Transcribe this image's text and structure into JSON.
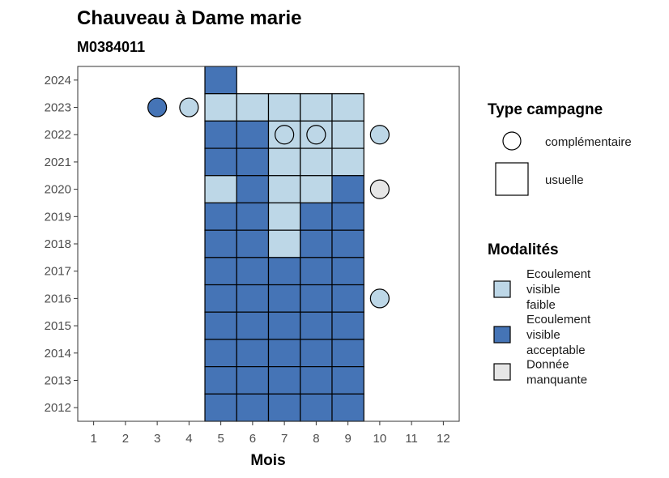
{
  "chart_data": {
    "type": "heatmap",
    "title": "Chauveau à Dame marie",
    "subtitle": "M0384011",
    "xlabel": "Mois",
    "ylabel": "",
    "x_ticks": [
      1,
      2,
      3,
      4,
      5,
      6,
      7,
      8,
      9,
      10,
      11,
      12
    ],
    "y_ticks": [
      2012,
      2013,
      2014,
      2015,
      2016,
      2017,
      2018,
      2019,
      2020,
      2021,
      2022,
      2023,
      2024
    ],
    "xlim": [
      0.5,
      12.5
    ],
    "ylim": [
      2011.5,
      2024.5
    ],
    "grid": false,
    "colors": {
      "faible": "#bdd7e7",
      "acceptable": "#4574b6",
      "manquante": "#e6e6e6"
    },
    "usuelle": [
      {
        "x": 5,
        "y": 2024,
        "m": "acceptable"
      },
      {
        "x": 5,
        "y": 2023,
        "m": "faible"
      },
      {
        "x": 6,
        "y": 2023,
        "m": "faible"
      },
      {
        "x": 7,
        "y": 2023,
        "m": "faible"
      },
      {
        "x": 8,
        "y": 2023,
        "m": "faible"
      },
      {
        "x": 9,
        "y": 2023,
        "m": "faible"
      },
      {
        "x": 5,
        "y": 2022,
        "m": "acceptable"
      },
      {
        "x": 6,
        "y": 2022,
        "m": "acceptable"
      },
      {
        "x": 7,
        "y": 2022,
        "m": "faible"
      },
      {
        "x": 8,
        "y": 2022,
        "m": "faible"
      },
      {
        "x": 9,
        "y": 2022,
        "m": "faible"
      },
      {
        "x": 5,
        "y": 2021,
        "m": "acceptable"
      },
      {
        "x": 6,
        "y": 2021,
        "m": "acceptable"
      },
      {
        "x": 7,
        "y": 2021,
        "m": "faible"
      },
      {
        "x": 8,
        "y": 2021,
        "m": "faible"
      },
      {
        "x": 9,
        "y": 2021,
        "m": "faible"
      },
      {
        "x": 5,
        "y": 2020,
        "m": "faible"
      },
      {
        "x": 6,
        "y": 2020,
        "m": "acceptable"
      },
      {
        "x": 7,
        "y": 2020,
        "m": "faible"
      },
      {
        "x": 8,
        "y": 2020,
        "m": "faible"
      },
      {
        "x": 9,
        "y": 2020,
        "m": "acceptable"
      },
      {
        "x": 5,
        "y": 2019,
        "m": "acceptable"
      },
      {
        "x": 6,
        "y": 2019,
        "m": "acceptable"
      },
      {
        "x": 7,
        "y": 2019,
        "m": "faible"
      },
      {
        "x": 8,
        "y": 2019,
        "m": "acceptable"
      },
      {
        "x": 9,
        "y": 2019,
        "m": "acceptable"
      },
      {
        "x": 5,
        "y": 2018,
        "m": "acceptable"
      },
      {
        "x": 6,
        "y": 2018,
        "m": "acceptable"
      },
      {
        "x": 7,
        "y": 2018,
        "m": "faible"
      },
      {
        "x": 8,
        "y": 2018,
        "m": "acceptable"
      },
      {
        "x": 9,
        "y": 2018,
        "m": "acceptable"
      },
      {
        "x": 5,
        "y": 2017,
        "m": "acceptable"
      },
      {
        "x": 6,
        "y": 2017,
        "m": "acceptable"
      },
      {
        "x": 7,
        "y": 2017,
        "m": "acceptable"
      },
      {
        "x": 8,
        "y": 2017,
        "m": "acceptable"
      },
      {
        "x": 9,
        "y": 2017,
        "m": "acceptable"
      },
      {
        "x": 5,
        "y": 2016,
        "m": "acceptable"
      },
      {
        "x": 6,
        "y": 2016,
        "m": "acceptable"
      },
      {
        "x": 7,
        "y": 2016,
        "m": "acceptable"
      },
      {
        "x": 8,
        "y": 2016,
        "m": "acceptable"
      },
      {
        "x": 9,
        "y": 2016,
        "m": "acceptable"
      },
      {
        "x": 5,
        "y": 2015,
        "m": "acceptable"
      },
      {
        "x": 6,
        "y": 2015,
        "m": "acceptable"
      },
      {
        "x": 7,
        "y": 2015,
        "m": "acceptable"
      },
      {
        "x": 8,
        "y": 2015,
        "m": "acceptable"
      },
      {
        "x": 9,
        "y": 2015,
        "m": "acceptable"
      },
      {
        "x": 5,
        "y": 2014,
        "m": "acceptable"
      },
      {
        "x": 6,
        "y": 2014,
        "m": "acceptable"
      },
      {
        "x": 7,
        "y": 2014,
        "m": "acceptable"
      },
      {
        "x": 8,
        "y": 2014,
        "m": "acceptable"
      },
      {
        "x": 9,
        "y": 2014,
        "m": "acceptable"
      },
      {
        "x": 5,
        "y": 2013,
        "m": "acceptable"
      },
      {
        "x": 6,
        "y": 2013,
        "m": "acceptable"
      },
      {
        "x": 7,
        "y": 2013,
        "m": "acceptable"
      },
      {
        "x": 8,
        "y": 2013,
        "m": "acceptable"
      },
      {
        "x": 9,
        "y": 2013,
        "m": "acceptable"
      },
      {
        "x": 5,
        "y": 2012,
        "m": "acceptable"
      },
      {
        "x": 6,
        "y": 2012,
        "m": "acceptable"
      },
      {
        "x": 7,
        "y": 2012,
        "m": "acceptable"
      },
      {
        "x": 8,
        "y": 2012,
        "m": "acceptable"
      },
      {
        "x": 9,
        "y": 2012,
        "m": "acceptable"
      }
    ],
    "complementaire": [
      {
        "x": 3,
        "y": 2023,
        "m": "acceptable"
      },
      {
        "x": 4,
        "y": 2023,
        "m": "faible"
      },
      {
        "x": 7,
        "y": 2022,
        "m": "faible"
      },
      {
        "x": 8,
        "y": 2022,
        "m": "faible"
      },
      {
        "x": 10,
        "y": 2022,
        "m": "faible"
      },
      {
        "x": 10,
        "y": 2020,
        "m": "manquante"
      },
      {
        "x": 10,
        "y": 2016,
        "m": "faible"
      }
    ],
    "legend_placement": "right",
    "legend_shape": {
      "title": "Type campagne",
      "items": [
        {
          "key": "complementaire",
          "label": "complémentaire",
          "icon": "circle"
        },
        {
          "key": "usuelle",
          "label": "usuelle",
          "icon": "square"
        }
      ]
    },
    "legend_fill": {
      "title": "Modalités",
      "items": [
        {
          "key": "faible",
          "label_lines": [
            "Ecoulement",
            "visible",
            "faible"
          ]
        },
        {
          "key": "acceptable",
          "label_lines": [
            "Ecoulement",
            "visible",
            "acceptable"
          ]
        },
        {
          "key": "manquante",
          "label_lines": [
            "Donnée",
            "manquante"
          ]
        }
      ]
    }
  }
}
